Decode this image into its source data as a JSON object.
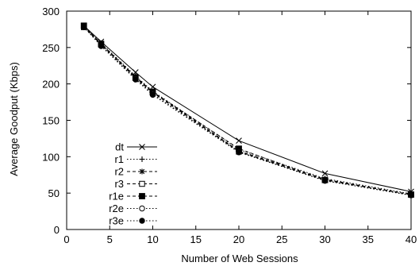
{
  "chart_data": {
    "type": "line",
    "title": "",
    "xlabel": "Number of Web Sessions",
    "ylabel": "Average Goodput (Kbps)",
    "xlim": [
      0,
      40
    ],
    "ylim": [
      0,
      300
    ],
    "x_ticks": [
      0,
      5,
      10,
      15,
      20,
      25,
      30,
      35,
      40
    ],
    "y_ticks": [
      0,
      50,
      100,
      150,
      200,
      250,
      300
    ],
    "grid": false,
    "legend_position": "left-middle",
    "x": [
      2,
      4,
      8,
      10,
      20,
      30,
      40
    ],
    "series": [
      {
        "name": "dt",
        "marker": "x",
        "dash": "solid",
        "values": [
          280,
          258,
          216,
          196,
          122,
          77,
          52
        ]
      },
      {
        "name": "r1",
        "marker": "plus",
        "dash": "dotted",
        "values": [
          279,
          256,
          211,
          190,
          110,
          70,
          49
        ]
      },
      {
        "name": "r2",
        "marker": "asterisk",
        "dash": "dashed",
        "values": [
          279,
          255,
          210,
          189,
          108,
          69,
          48
        ]
      },
      {
        "name": "r3",
        "marker": "open-square",
        "dash": "dashed",
        "values": [
          278,
          254,
          208,
          188,
          107,
          68,
          48
        ]
      },
      {
        "name": "r1e",
        "marker": "filled-square",
        "dash": "dashed",
        "values": [
          280,
          255,
          209,
          189,
          111,
          68,
          48
        ]
      },
      {
        "name": "r2e",
        "marker": "open-circle",
        "dash": "dotted",
        "values": [
          278,
          253,
          207,
          186,
          107,
          67,
          47
        ]
      },
      {
        "name": "r3e",
        "marker": "filled-circle",
        "dash": "dotted",
        "values": [
          278,
          252,
          206,
          185,
          106,
          67,
          47
        ]
      }
    ]
  }
}
